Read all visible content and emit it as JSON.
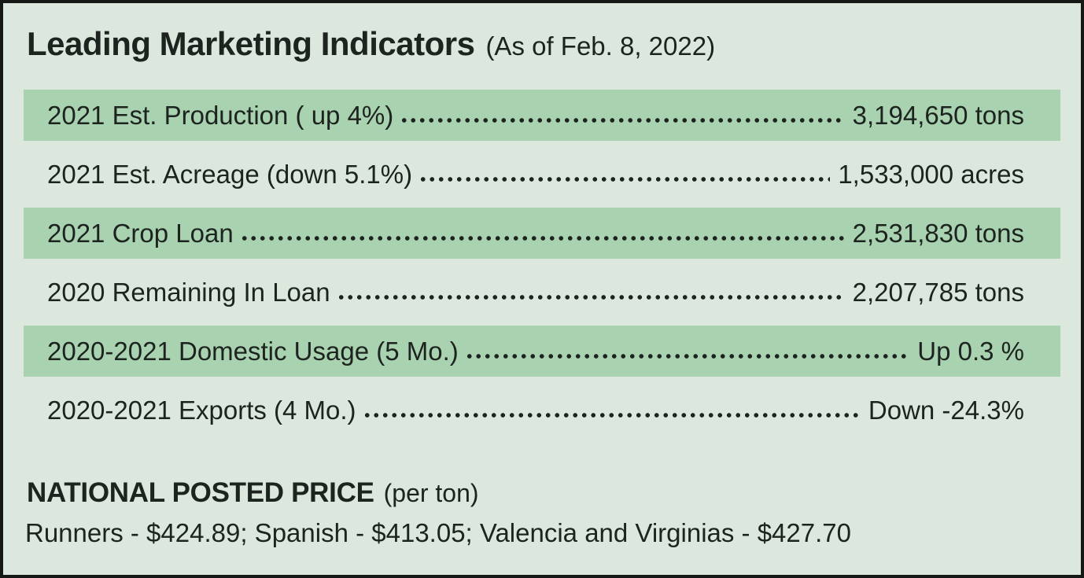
{
  "title": {
    "main": "Leading Marketing Indicators",
    "date_note": "(As of Feb. 8, 2022)"
  },
  "indicators": [
    {
      "label": "2021 Est. Production ( up 4%)",
      "value": "3,194,650 tons",
      "shaded": true
    },
    {
      "label": "2021 Est. Acreage (down 5.1%)",
      "value": "1,533,000 acres",
      "shaded": false
    },
    {
      "label": "2021 Crop Loan",
      "value": "2,531,830 tons",
      "shaded": true
    },
    {
      "label": "2020 Remaining In Loan",
      "value": "2,207,785 tons",
      "shaded": false
    },
    {
      "label": "2020-2021 Domestic Usage (5 Mo.)",
      "value": "Up 0.3 %",
      "shaded": true
    },
    {
      "label": "2020-2021 Exports (4 Mo.)",
      "value": "Down -24.3%",
      "shaded": false
    }
  ],
  "national_posted_price": {
    "heading": "NATIONAL POSTED PRICE",
    "unit_note": "(per ton)",
    "prices_line": "Runners - $424.89; Spanish - $413.05; Valencia and Virginias - $427.70",
    "prices": [
      {
        "type": "Runners",
        "price": "$424.89"
      },
      {
        "type": "Spanish",
        "price": "$413.05"
      },
      {
        "type": "Valencia and Virginias",
        "price": "$427.70"
      }
    ]
  },
  "colors": {
    "background": "#dce8dd",
    "band": "#a9d2b1",
    "text": "#1d231e",
    "border": "#161815"
  }
}
